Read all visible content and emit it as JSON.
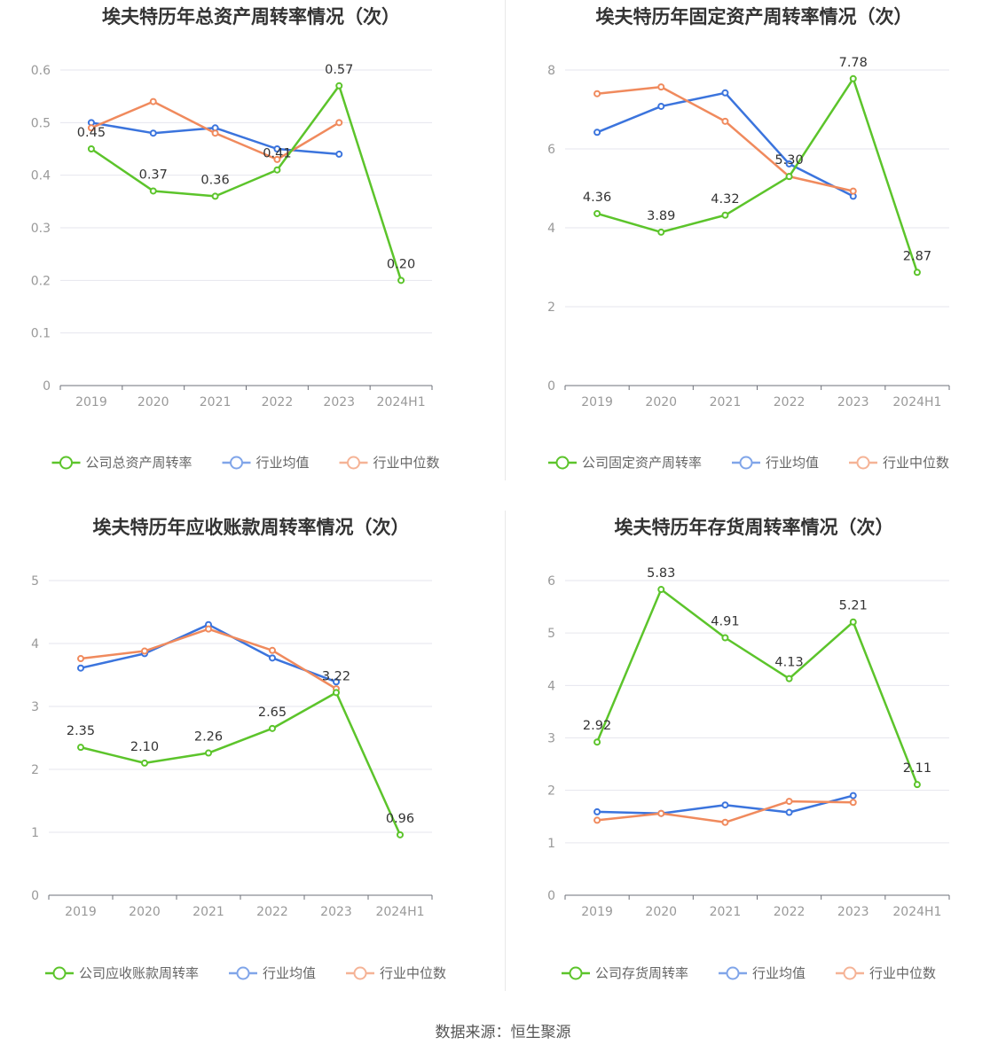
{
  "footer": "数据来源：恒生聚源",
  "chart_data": [
    {
      "type": "line",
      "title": "埃夫特历年总资产周转率情况（次）",
      "categories": [
        "2019",
        "2020",
        "2021",
        "2022",
        "2023",
        "2024H1"
      ],
      "ylim": [
        0,
        0.6
      ],
      "yticks": [
        "0",
        "0.1",
        "0.2",
        "0.3",
        "0.4",
        "0.5",
        "0.6"
      ],
      "series": [
        {
          "name": "公司总资产周转率",
          "color": "#5cc42b",
          "values": [
            0.45,
            0.37,
            0.36,
            0.41,
            0.57,
            0.2
          ],
          "labels": [
            "0.45",
            "0.37",
            "0.36",
            "0.41",
            "0.57",
            "0.20"
          ]
        },
        {
          "name": "行业均值",
          "color": "#3b74dd",
          "values": [
            0.5,
            0.48,
            0.49,
            0.45,
            0.44,
            null
          ]
        },
        {
          "name": "行业中位数",
          "color": "#f08a5d",
          "values": [
            0.49,
            0.54,
            0.48,
            0.43,
            0.5,
            null
          ]
        }
      ]
    },
    {
      "type": "line",
      "title": "埃夫特历年固定资产周转率情况（次）",
      "categories": [
        "2019",
        "2020",
        "2021",
        "2022",
        "2023",
        "2024H1"
      ],
      "ylim": [
        0,
        8
      ],
      "yticks": [
        "0",
        "2",
        "4",
        "6",
        "8"
      ],
      "series": [
        {
          "name": "公司固定资产周转率",
          "color": "#5cc42b",
          "values": [
            4.36,
            3.89,
            4.32,
            5.3,
            7.78,
            2.87
          ],
          "labels": [
            "4.36",
            "3.89",
            "4.32",
            "5.30",
            "7.78",
            "2.87"
          ]
        },
        {
          "name": "行业均值",
          "color": "#3b74dd",
          "values": [
            6.42,
            7.08,
            7.42,
            5.62,
            4.8,
            null
          ]
        },
        {
          "name": "行业中位数",
          "color": "#f08a5d",
          "values": [
            7.4,
            7.57,
            6.7,
            5.3,
            4.93,
            null
          ]
        }
      ]
    },
    {
      "type": "line",
      "title": "埃夫特历年应收账款周转率情况（次）",
      "categories": [
        "2019",
        "2020",
        "2021",
        "2022",
        "2023",
        "2024H1"
      ],
      "ylim": [
        0,
        5
      ],
      "yticks": [
        "0",
        "1",
        "2",
        "3",
        "4",
        "5"
      ],
      "series": [
        {
          "name": "公司应收账款周转率",
          "color": "#5cc42b",
          "values": [
            2.35,
            2.1,
            2.26,
            2.65,
            3.22,
            0.96
          ],
          "labels": [
            "2.35",
            "2.10",
            "2.26",
            "2.65",
            "3.22",
            "0.96"
          ]
        },
        {
          "name": "行业均值",
          "color": "#3b74dd",
          "values": [
            3.61,
            3.84,
            4.3,
            3.77,
            3.39,
            null
          ]
        },
        {
          "name": "行业中位数",
          "color": "#f08a5d",
          "values": [
            3.76,
            3.88,
            4.23,
            3.89,
            3.28,
            null
          ]
        }
      ]
    },
    {
      "type": "line",
      "title": "埃夫特历年存货周转率情况（次）",
      "categories": [
        "2019",
        "2020",
        "2021",
        "2022",
        "2023",
        "2024H1"
      ],
      "ylim": [
        0,
        6
      ],
      "yticks": [
        "0",
        "1",
        "2",
        "3",
        "4",
        "5",
        "6"
      ],
      "series": [
        {
          "name": "公司存货周转率",
          "color": "#5cc42b",
          "values": [
            2.92,
            5.83,
            4.91,
            4.13,
            5.21,
            2.11
          ],
          "labels": [
            "2.92",
            "5.83",
            "4.91",
            "4.13",
            "5.21",
            "2.11"
          ]
        },
        {
          "name": "行业均值",
          "color": "#3b74dd",
          "values": [
            1.59,
            1.56,
            1.72,
            1.58,
            1.9,
            null
          ]
        },
        {
          "name": "行业中位数",
          "color": "#f08a5d",
          "values": [
            1.43,
            1.56,
            1.39,
            1.79,
            1.77,
            null
          ]
        }
      ]
    }
  ]
}
